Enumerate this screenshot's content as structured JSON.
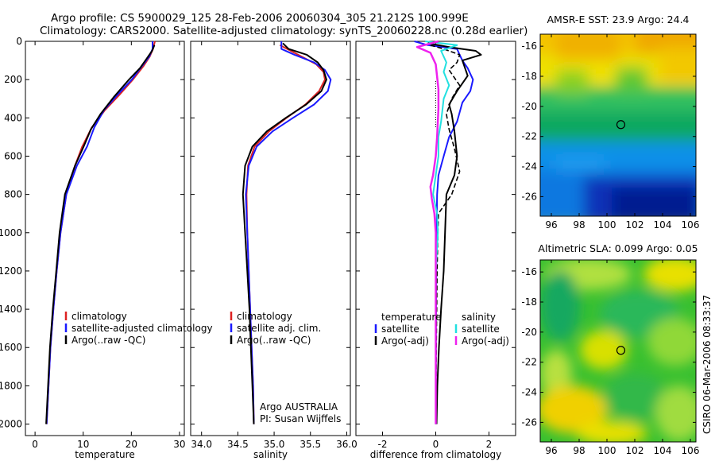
{
  "header": {
    "line1": "Argo profile: CS 5900029_125 28-Feb-2006 20060304_305 21.212S 100.999E",
    "line2": "Climatology: CARS2000. Satellite-adjusted climatology: synTS_20060228.nc (0.28d earlier)"
  },
  "side_note": "CSIRO 06-Mar-2006 08:33:37",
  "colors": {
    "red": "#dd2222",
    "blue": "#1a1aff",
    "black": "#000000",
    "cyan": "#22e0e0",
    "magenta": "#ee22ee"
  },
  "chart_data": [
    {
      "type": "line",
      "id": "temperature",
      "xlabel": "temperature",
      "ylabel": "",
      "xlim": [
        -2,
        31
      ],
      "ylim": [
        2060,
        0
      ],
      "xticks": [
        0,
        10,
        20,
        30
      ],
      "yticks": [
        0,
        200,
        400,
        600,
        800,
        1000,
        1200,
        1400,
        1600,
        1800,
        2000
      ],
      "legend": {
        "placement": "bottom-right",
        "entries": [
          "climatology",
          "satellite-adjusted climatology",
          "Argo(..raw -QC)"
        ]
      },
      "series": [
        {
          "name": "climatology",
          "color": "red",
          "width": 2,
          "points": [
            [
              24.9,
              0
            ],
            [
              24.5,
              40
            ],
            [
              23.8,
              80
            ],
            [
              22.5,
              130
            ],
            [
              20.3,
              200
            ],
            [
              17.5,
              280
            ],
            [
              14.5,
              360
            ],
            [
              11.8,
              450
            ],
            [
              9.8,
              550
            ],
            [
              8.3,
              650
            ],
            [
              6.5,
              800
            ],
            [
              5.3,
              1000
            ],
            [
              4.5,
              1200
            ],
            [
              3.8,
              1400
            ],
            [
              3.2,
              1600
            ],
            [
              2.8,
              1800
            ],
            [
              2.4,
              2000
            ]
          ]
        },
        {
          "name": "satellite-adjusted climatology",
          "color": "blue",
          "width": 2,
          "points": [
            [
              24.4,
              0
            ],
            [
              24.4,
              40
            ],
            [
              23.7,
              80
            ],
            [
              22.2,
              130
            ],
            [
              20.1,
              200
            ],
            [
              17.1,
              280
            ],
            [
              14.3,
              360
            ],
            [
              12.3,
              450
            ],
            [
              10.8,
              550
            ],
            [
              8.7,
              650
            ],
            [
              6.5,
              800
            ],
            [
              5.3,
              1000
            ],
            [
              4.5,
              1200
            ],
            [
              3.8,
              1400
            ],
            [
              3.2,
              1600
            ],
            [
              2.8,
              1800
            ],
            [
              2.4,
              2000
            ]
          ]
        },
        {
          "name": "Argo(..raw -QC)",
          "color": "black",
          "width": 2,
          "points": [
            [
              24.8,
              20
            ],
            [
              24.3,
              50
            ],
            [
              23.2,
              90
            ],
            [
              21.8,
              140
            ],
            [
              19.5,
              200
            ],
            [
              16.4,
              290
            ],
            [
              13.6,
              380
            ],
            [
              11.6,
              460
            ],
            [
              10.1,
              550
            ],
            [
              8.3,
              650
            ],
            [
              6.2,
              800
            ],
            [
              5.1,
              1000
            ],
            [
              4.4,
              1200
            ],
            [
              3.7,
              1400
            ],
            [
              3.1,
              1600
            ],
            [
              2.7,
              1800
            ],
            [
              2.3,
              2000
            ]
          ]
        }
      ]
    },
    {
      "type": "line",
      "id": "salinity",
      "xlabel": "salinity",
      "ylabel": "",
      "xlim": [
        33.85,
        36.05
      ],
      "ylim": [
        2060,
        0
      ],
      "xticks": [
        34,
        34.5,
        35,
        35.5,
        36
      ],
      "yticks": [
        0,
        200,
        400,
        600,
        800,
        1000,
        1200,
        1400,
        1600,
        1800,
        2000
      ],
      "legend": {
        "placement": "bottom-right",
        "entries": [
          "climatology",
          "satellite adj. clim.",
          "Argo(..raw -QC)"
        ]
      },
      "annotation": [
        "Argo AUSTRALIA",
        "PI: Susan Wijffels"
      ],
      "series": [
        {
          "name": "climatology",
          "color": "red",
          "width": 2,
          "points": [
            [
              35.08,
              20
            ],
            [
              35.18,
              40
            ],
            [
              35.38,
              80
            ],
            [
              35.58,
              120
            ],
            [
              35.68,
              160
            ],
            [
              35.7,
              200
            ],
            [
              35.62,
              260
            ],
            [
              35.43,
              330
            ],
            [
              35.17,
              400
            ],
            [
              34.93,
              470
            ],
            [
              34.73,
              550
            ],
            [
              34.64,
              650
            ],
            [
              34.62,
              800
            ],
            [
              34.63,
              1000
            ],
            [
              34.65,
              1200
            ],
            [
              34.67,
              1400
            ],
            [
              34.69,
              1600
            ],
            [
              34.71,
              1800
            ],
            [
              34.72,
              2000
            ]
          ]
        },
        {
          "name": "satellite adj. clim.",
          "color": "blue",
          "width": 2,
          "points": [
            [
              35.1,
              0
            ],
            [
              35.1,
              40
            ],
            [
              35.28,
              70
            ],
            [
              35.55,
              110
            ],
            [
              35.7,
              150
            ],
            [
              35.78,
              200
            ],
            [
              35.74,
              260
            ],
            [
              35.55,
              330
            ],
            [
              35.26,
              400
            ],
            [
              34.98,
              470
            ],
            [
              34.76,
              550
            ],
            [
              34.65,
              650
            ],
            [
              34.61,
              800
            ],
            [
              34.63,
              1000
            ],
            [
              34.65,
              1200
            ],
            [
              34.67,
              1400
            ],
            [
              34.69,
              1600
            ],
            [
              34.71,
              1800
            ],
            [
              34.72,
              2000
            ]
          ]
        },
        {
          "name": "Argo(..raw -QC)",
          "color": "black",
          "width": 2,
          "points": [
            [
              35.12,
              10
            ],
            [
              35.2,
              40
            ],
            [
              35.45,
              70
            ],
            [
              35.6,
              110
            ],
            [
              35.68,
              150
            ],
            [
              35.72,
              200
            ],
            [
              35.65,
              260
            ],
            [
              35.44,
              330
            ],
            [
              35.16,
              400
            ],
            [
              34.9,
              470
            ],
            [
              34.7,
              550
            ],
            [
              34.6,
              650
            ],
            [
              34.57,
              800
            ],
            [
              34.6,
              1000
            ],
            [
              34.63,
              1200
            ],
            [
              34.66,
              1400
            ],
            [
              34.68,
              1600
            ],
            [
              34.7,
              1800
            ],
            [
              34.72,
              2000
            ]
          ]
        }
      ]
    },
    {
      "type": "line",
      "id": "difference",
      "xlabel": "difference from climatology",
      "ylabel": "",
      "xlim": [
        -3,
        3
      ],
      "ylim": [
        2060,
        0
      ],
      "xticks": [
        -2,
        0,
        2
      ],
      "yticks": [
        0,
        200,
        400,
        600,
        800,
        1000,
        1200,
        1400,
        1600,
        1800,
        2000
      ],
      "legend": {
        "placement": "bottom",
        "col1_title": "temperature",
        "col1": [
          "satellite",
          "Argo(-adj)"
        ],
        "col2_title": "salinity",
        "col2": [
          "satellite",
          "Argo(-adj)"
        ]
      },
      "series": [
        {
          "name": "temperature satellite",
          "color": "blue",
          "width": 2,
          "points": [
            [
              -0.8,
              0
            ],
            [
              -0.3,
              20
            ],
            [
              0.8,
              40
            ],
            [
              0.9,
              70
            ],
            [
              1.0,
              100
            ],
            [
              1.2,
              140
            ],
            [
              1.4,
              200
            ],
            [
              1.3,
              260
            ],
            [
              1.0,
              320
            ],
            [
              0.8,
              420
            ],
            [
              0.5,
              500
            ],
            [
              0.3,
              600
            ],
            [
              0.1,
              700
            ],
            [
              0.05,
              800
            ],
            [
              0.03,
              1000
            ],
            [
              0.02,
              1200
            ],
            [
              0.01,
              1600
            ],
            [
              0.0,
              2000
            ]
          ]
        },
        {
          "name": "temperature Argo(-adj)",
          "color": "black",
          "width": 2,
          "points": [
            [
              -0.3,
              10
            ],
            [
              0.5,
              30
            ],
            [
              1.5,
              50
            ],
            [
              1.7,
              70
            ],
            [
              1.0,
              100
            ],
            [
              1.2,
              180
            ],
            [
              0.8,
              260
            ],
            [
              0.5,
              330
            ],
            [
              0.6,
              380
            ],
            [
              0.7,
              470
            ],
            [
              0.8,
              600
            ],
            [
              0.7,
              700
            ],
            [
              0.4,
              800
            ],
            [
              0.35,
              1000
            ],
            [
              0.3,
              1200
            ],
            [
              0.2,
              1400
            ],
            [
              0.12,
              1600
            ],
            [
              0.06,
              1800
            ],
            [
              0.03,
              2000
            ]
          ]
        },
        {
          "name": "Argo(-adj) dashed",
          "color": "black",
          "width": 1.6,
          "dash": "6,3",
          "points": [
            [
              -0.2,
              20
            ],
            [
              0.3,
              40
            ],
            [
              0.9,
              70
            ],
            [
              0.8,
              110
            ],
            [
              0.5,
              150
            ],
            [
              0.9,
              230
            ],
            [
              0.6,
              300
            ],
            [
              0.4,
              380
            ],
            [
              0.5,
              460
            ],
            [
              0.7,
              560
            ],
            [
              0.9,
              680
            ],
            [
              0.6,
              800
            ],
            [
              0.1,
              900
            ],
            [
              0.08,
              1000
            ],
            [
              0.05,
              1200
            ],
            [
              0.02,
              1600
            ],
            [
              0.0,
              2000
            ]
          ]
        },
        {
          "name": "salinity satellite",
          "color": "cyan",
          "width": 2,
          "points": [
            [
              -0.4,
              0
            ],
            [
              0.8,
              20
            ],
            [
              0.2,
              50
            ],
            [
              0.4,
              110
            ],
            [
              0.3,
              160
            ],
            [
              0.5,
              230
            ],
            [
              0.3,
              300
            ],
            [
              0.2,
              420
            ],
            [
              0.1,
              500
            ],
            [
              0.1,
              600
            ],
            [
              0.0,
              700
            ],
            [
              -0.1,
              800
            ],
            [
              0.05,
              900
            ],
            [
              0.08,
              1000
            ],
            [
              0.0,
              1200
            ],
            [
              0.0,
              1400
            ],
            [
              0.0,
              1600
            ],
            [
              0.0,
              1800
            ],
            [
              0.0,
              2000
            ]
          ]
        },
        {
          "name": "salinity Argo(-adj)",
          "color": "magenta",
          "width": 2.5,
          "points": [
            [
              0.1,
              0
            ],
            [
              -0.7,
              30
            ],
            [
              -0.2,
              60
            ],
            [
              0.0,
              120
            ],
            [
              0.1,
              250
            ],
            [
              0.1,
              350
            ],
            [
              0.05,
              500
            ],
            [
              0.0,
              600
            ],
            [
              -0.1,
              700
            ],
            [
              -0.2,
              760
            ],
            [
              -0.15,
              820
            ],
            [
              -0.05,
              900
            ],
            [
              0.0,
              1000
            ],
            [
              0.0,
              2000
            ]
          ]
        }
      ]
    },
    {
      "type": "heatmap",
      "id": "sst-map",
      "title": "AMSR-E SST: 23.9 Argo: 24.4",
      "xlim": [
        95.2,
        106.4
      ],
      "ylim": [
        -27.3,
        -15.2
      ],
      "xticks": [
        96,
        98,
        100,
        102,
        104,
        106
      ],
      "yticks": [
        -16,
        -18,
        -20,
        -22,
        -24,
        -26
      ],
      "argo_marker": {
        "lon": 100.999,
        "lat": -21.212
      }
    },
    {
      "type": "heatmap",
      "id": "sla-map",
      "title": "Altimetric SLA: 0.099 Argo: 0.05",
      "xlim": [
        95.2,
        106.4
      ],
      "ylim": [
        -27.3,
        -15.2
      ],
      "xticks": [
        96,
        98,
        100,
        102,
        104,
        106
      ],
      "yticks": [
        -16,
        -18,
        -20,
        -22,
        -24,
        -26
      ],
      "argo_marker": {
        "lon": 100.999,
        "lat": -21.212
      }
    }
  ]
}
